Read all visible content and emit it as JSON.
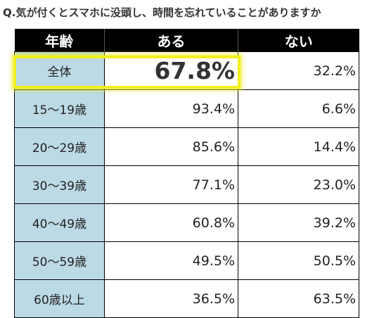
{
  "question": "Q.気が付くとスマホに没頭し、時間を忘れていることがありますか",
  "chart_data": {
    "type": "table",
    "columns": [
      "年齢",
      "ある",
      "ない"
    ],
    "rows": [
      {
        "label": "全体",
        "aru": "67.8%",
        "nai": "32.2%"
      },
      {
        "label": "15〜19歳",
        "aru": "93.4%",
        "nai": "6.6%"
      },
      {
        "label": "20〜29歳",
        "aru": "85.6%",
        "nai": "14.4%"
      },
      {
        "label": "30〜39歳",
        "aru": "77.1%",
        "nai": "23.0%"
      },
      {
        "label": "40〜49歳",
        "aru": "60.8%",
        "nai": "39.2%"
      },
      {
        "label": "50〜59歳",
        "aru": "49.5%",
        "nai": "50.5%"
      },
      {
        "label": "60歳以上",
        "aru": "36.5%",
        "nai": "63.5%"
      }
    ]
  },
  "colors": {
    "header_bg": "#000000",
    "age_cell_bg": "#bcd9e6",
    "highlight": "#f2ef1f"
  }
}
